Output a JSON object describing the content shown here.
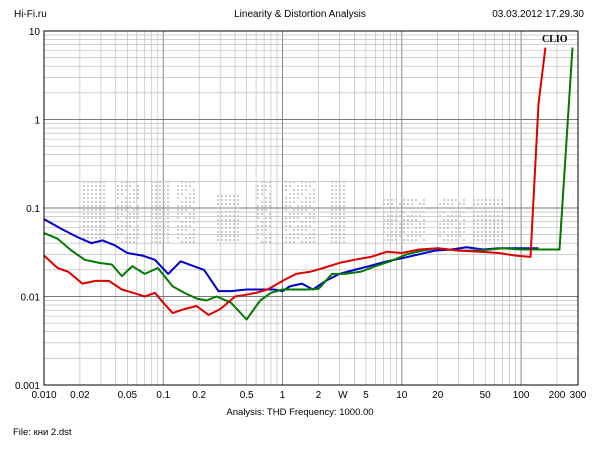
{
  "header": {
    "left": "Hi-Fi.ru",
    "center": "Linearity & Distortion Analysis",
    "right": "03.03.2012 17.29.30"
  },
  "footer": {
    "analysis": "Analysis: THD   Frequency: 1000.00",
    "file": "File: кни 2.dst"
  },
  "chart_data": {
    "type": "line",
    "title": "Linearity & Distortion Analysis",
    "xscale": "log",
    "yscale": "log",
    "xlim": [
      0.01,
      300
    ],
    "ylim": [
      0.001,
      10
    ],
    "grid": true,
    "brand_label": "CLIO",
    "watermark": "Hi-Fi.ru (dotted watermark)",
    "x_ticks": [
      "0.010",
      "0.02",
      "0.05",
      "0.1",
      "0.2",
      "0.5",
      "1",
      "2",
      "W",
      "5",
      "10",
      "20",
      "50",
      "100",
      "200",
      "300"
    ],
    "x_tick_values": [
      0.01,
      0.02,
      0.05,
      0.1,
      0.2,
      0.5,
      1,
      2,
      3.2,
      5,
      10,
      20,
      50,
      100,
      200,
      300
    ],
    "y_ticks": [
      "10",
      "1",
      "0.1",
      "0.01",
      "0.001"
    ],
    "y_tick_values": [
      10,
      1,
      0.1,
      0.01,
      0.001
    ],
    "series": [
      {
        "color": "#0000cc",
        "x": [
          0.01,
          0.014,
          0.019,
          0.025,
          0.031,
          0.039,
          0.05,
          0.067,
          0.085,
          0.11,
          0.14,
          0.18,
          0.22,
          0.29,
          0.37,
          0.5,
          0.67,
          0.85,
          1.0,
          1.15,
          1.45,
          1.8,
          2.3,
          3.0,
          4.0,
          5.3,
          7.5,
          10,
          14,
          19,
          26,
          35,
          48,
          65,
          90,
          115,
          140
        ],
        "y": [
          0.075,
          0.058,
          0.047,
          0.04,
          0.043,
          0.038,
          0.031,
          0.029,
          0.026,
          0.018,
          0.025,
          0.022,
          0.02,
          0.0115,
          0.0115,
          0.012,
          0.012,
          0.012,
          0.0115,
          0.013,
          0.014,
          0.012,
          0.015,
          0.018,
          0.02,
          0.022,
          0.025,
          0.027,
          0.03,
          0.033,
          0.034,
          0.036,
          0.034,
          0.035,
          0.035,
          0.035,
          0.035
        ]
      },
      {
        "color": "#007a00",
        "x": [
          0.01,
          0.013,
          0.017,
          0.022,
          0.029,
          0.037,
          0.045,
          0.055,
          0.07,
          0.09,
          0.12,
          0.15,
          0.19,
          0.23,
          0.28,
          0.37,
          0.5,
          0.65,
          0.8,
          1.0,
          1.3,
          1.6,
          2.0,
          2.6,
          3.3,
          4.5,
          6,
          8,
          11,
          15,
          20,
          30,
          45,
          70,
          100,
          130,
          160,
          210,
          270
        ],
        "y": [
          0.052,
          0.045,
          0.033,
          0.026,
          0.024,
          0.023,
          0.017,
          0.022,
          0.018,
          0.021,
          0.013,
          0.011,
          0.0095,
          0.009,
          0.01,
          0.0085,
          0.0055,
          0.009,
          0.011,
          0.012,
          0.012,
          0.012,
          0.0122,
          0.018,
          0.018,
          0.019,
          0.022,
          0.025,
          0.03,
          0.033,
          0.035,
          0.033,
          0.033,
          0.035,
          0.034,
          0.034,
          0.034,
          0.034,
          6.5
        ]
      },
      {
        "color": "#dd0000",
        "x": [
          0.01,
          0.013,
          0.016,
          0.021,
          0.027,
          0.035,
          0.045,
          0.056,
          0.07,
          0.085,
          0.1,
          0.12,
          0.15,
          0.19,
          0.24,
          0.3,
          0.4,
          0.5,
          0.6,
          0.75,
          1.0,
          1.3,
          1.7,
          2.2,
          3.0,
          4.0,
          5.5,
          7.5,
          10,
          14,
          20,
          30,
          45,
          65,
          90,
          120,
          140,
          160
        ],
        "y": [
          0.029,
          0.021,
          0.019,
          0.014,
          0.015,
          0.015,
          0.012,
          0.011,
          0.01,
          0.011,
          0.0085,
          0.0065,
          0.0072,
          0.0078,
          0.0062,
          0.0072,
          0.01,
          0.0105,
          0.011,
          0.012,
          0.015,
          0.018,
          0.019,
          0.021,
          0.024,
          0.026,
          0.028,
          0.032,
          0.031,
          0.034,
          0.035,
          0.033,
          0.032,
          0.031,
          0.029,
          0.028,
          1.5,
          6.5
        ]
      }
    ]
  }
}
